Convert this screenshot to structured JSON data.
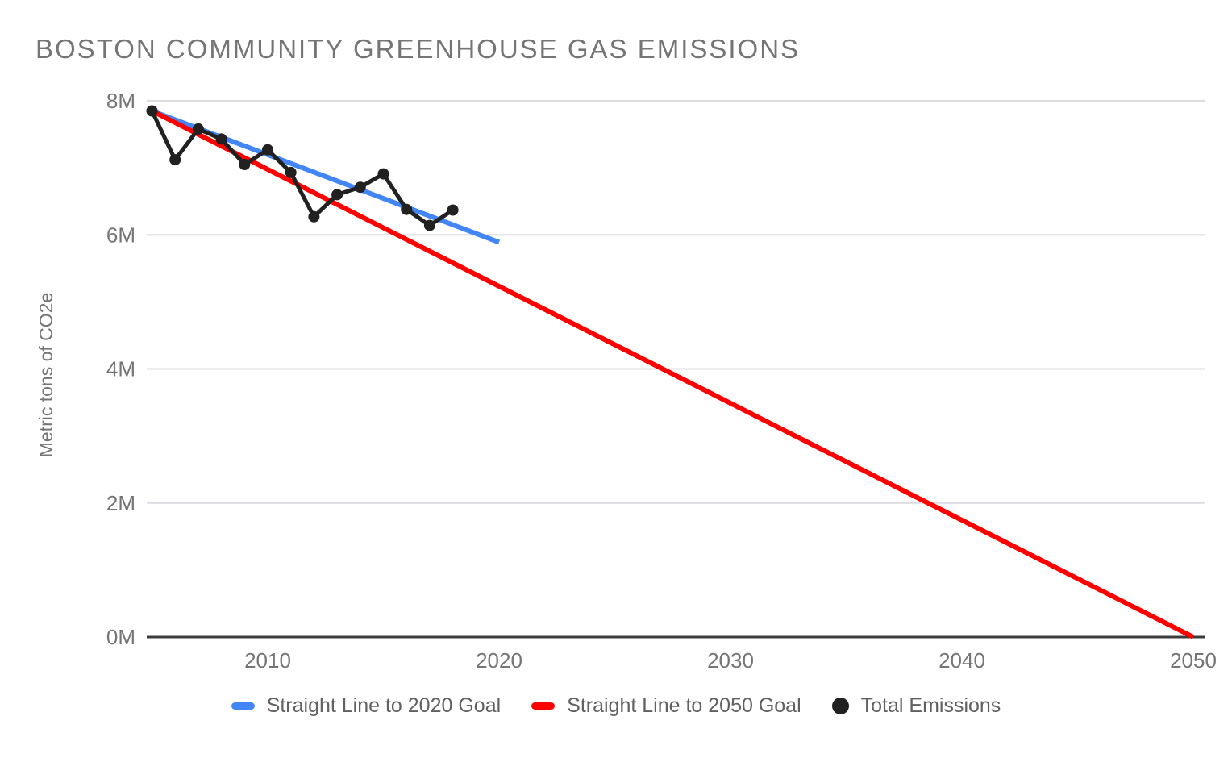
{
  "chart_data": {
    "type": "line",
    "title": "BOSTON COMMUNITY GREENHOUSE GAS EMISSIONS",
    "xlabel": "",
    "ylabel": "Metric tons of CO2e",
    "ylim": [
      0,
      8000000
    ],
    "xlim": [
      2005,
      2050
    ],
    "grid": "horizontal",
    "legend_position": "bottom",
    "y_ticks": [
      {
        "value": 0,
        "label": "0M"
      },
      {
        "value": 2000000,
        "label": "2M"
      },
      {
        "value": 4000000,
        "label": "4M"
      },
      {
        "value": 6000000,
        "label": "6M"
      },
      {
        "value": 8000000,
        "label": "8M"
      }
    ],
    "x_ticks": [
      {
        "value": 2010,
        "label": "2010"
      },
      {
        "value": 2020,
        "label": "2020"
      },
      {
        "value": 2030,
        "label": "2030"
      },
      {
        "value": 2040,
        "label": "2040"
      },
      {
        "value": 2050,
        "label": "2050"
      }
    ],
    "series": [
      {
        "name": "Straight Line to 2020 Goal",
        "type": "line",
        "color": "#4285f4",
        "x": [
          2005,
          2020
        ],
        "values": [
          7850000,
          5890000
        ]
      },
      {
        "name": "Straight Line to 2050 Goal",
        "type": "line",
        "color": "#ff0000",
        "x": [
          2005,
          2050
        ],
        "values": [
          7850000,
          0
        ]
      },
      {
        "name": "Total Emissions",
        "type": "line+points",
        "color": "#212121",
        "x": [
          2005,
          2006,
          2007,
          2008,
          2009,
          2010,
          2011,
          2012,
          2013,
          2014,
          2015,
          2016,
          2017,
          2018
        ],
        "values": [
          7850000,
          7120000,
          7580000,
          7430000,
          7050000,
          7270000,
          6930000,
          6270000,
          6600000,
          6710000,
          6910000,
          6380000,
          6140000,
          6370000
        ]
      }
    ],
    "legend": [
      {
        "label": "Straight Line to 2020 Goal",
        "color": "#4285f4",
        "marker": "dash"
      },
      {
        "label": "Straight Line to 2050 Goal",
        "color": "#ff0000",
        "marker": "dash"
      },
      {
        "label": "Total Emissions",
        "color": "#212121",
        "marker": "circle"
      }
    ],
    "colors": {
      "goal_2020_line": "#4285f4",
      "goal_2050_line": "#ff0000",
      "emissions_series": "#212121",
      "gridline": "#dadce0",
      "axis_line": "#3c3c3c",
      "tick_label": "#757575",
      "title_text": "#757575",
      "legend_text": "#616161",
      "background": "#ffffff"
    }
  }
}
